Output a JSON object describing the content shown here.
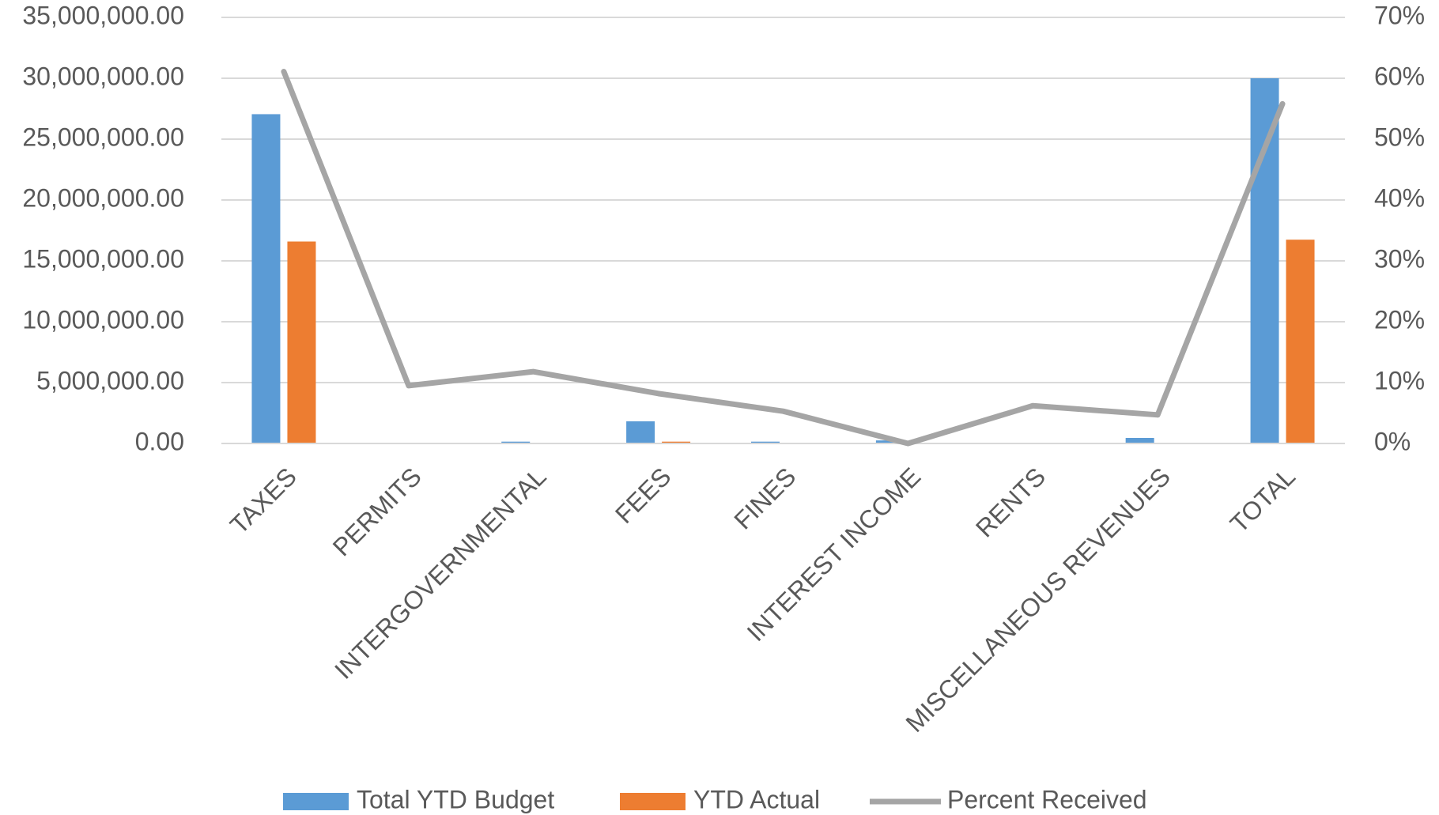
{
  "chart_data": {
    "type": "bar",
    "categories": [
      "TAXES",
      "PERMITS",
      "INTERGOVERNMENTAL",
      "FEES",
      "FINES",
      "INTEREST INCOME",
      "RENTS",
      "MISCELLANEOUS REVENUES",
      "TOTAL"
    ],
    "series": [
      {
        "name": "Total YTD Budget",
        "color": "#5b9bd5",
        "type": "bar",
        "values": [
          27050000,
          20000,
          150000,
          1820000,
          150000,
          250000,
          30000,
          455000,
          30000000
        ]
      },
      {
        "name": "YTD Actual",
        "color": "#ed7d31",
        "type": "bar",
        "values": [
          16590000,
          2000,
          18000,
          150000,
          8000,
          0,
          2000,
          22000,
          16740000
        ]
      },
      {
        "name": "Percent Received",
        "color": "#a5a5a5",
        "type": "line",
        "axis": "y2",
        "values": [
          61.1,
          9.5,
          11.8,
          8.2,
          5.3,
          0,
          6.2,
          4.7,
          55.8
        ]
      }
    ],
    "ylim": [
      0,
      35000000
    ],
    "yticks": [
      {
        "value": 0,
        "label": "0.00"
      },
      {
        "value": 5000000,
        "label": "5,000,000.00"
      },
      {
        "value": 10000000,
        "label": "10,000,000.00"
      },
      {
        "value": 15000000,
        "label": "15,000,000.00"
      },
      {
        "value": 20000000,
        "label": "20,000,000.00"
      },
      {
        "value": 25000000,
        "label": "25,000,000.00"
      },
      {
        "value": 30000000,
        "label": "30,000,000.00"
      },
      {
        "value": 35000000,
        "label": "35,000,000.00"
      }
    ],
    "y2lim": [
      0,
      70
    ],
    "y2ticks": [
      {
        "value": 0,
        "label": "0%"
      },
      {
        "value": 10,
        "label": "10%"
      },
      {
        "value": 20,
        "label": "20%"
      },
      {
        "value": 30,
        "label": "30%"
      },
      {
        "value": 40,
        "label": "40%"
      },
      {
        "value": 50,
        "label": "50%"
      },
      {
        "value": 60,
        "label": "60%"
      },
      {
        "value": 70,
        "label": "70%"
      }
    ],
    "grid": true,
    "legend": "bottom"
  }
}
